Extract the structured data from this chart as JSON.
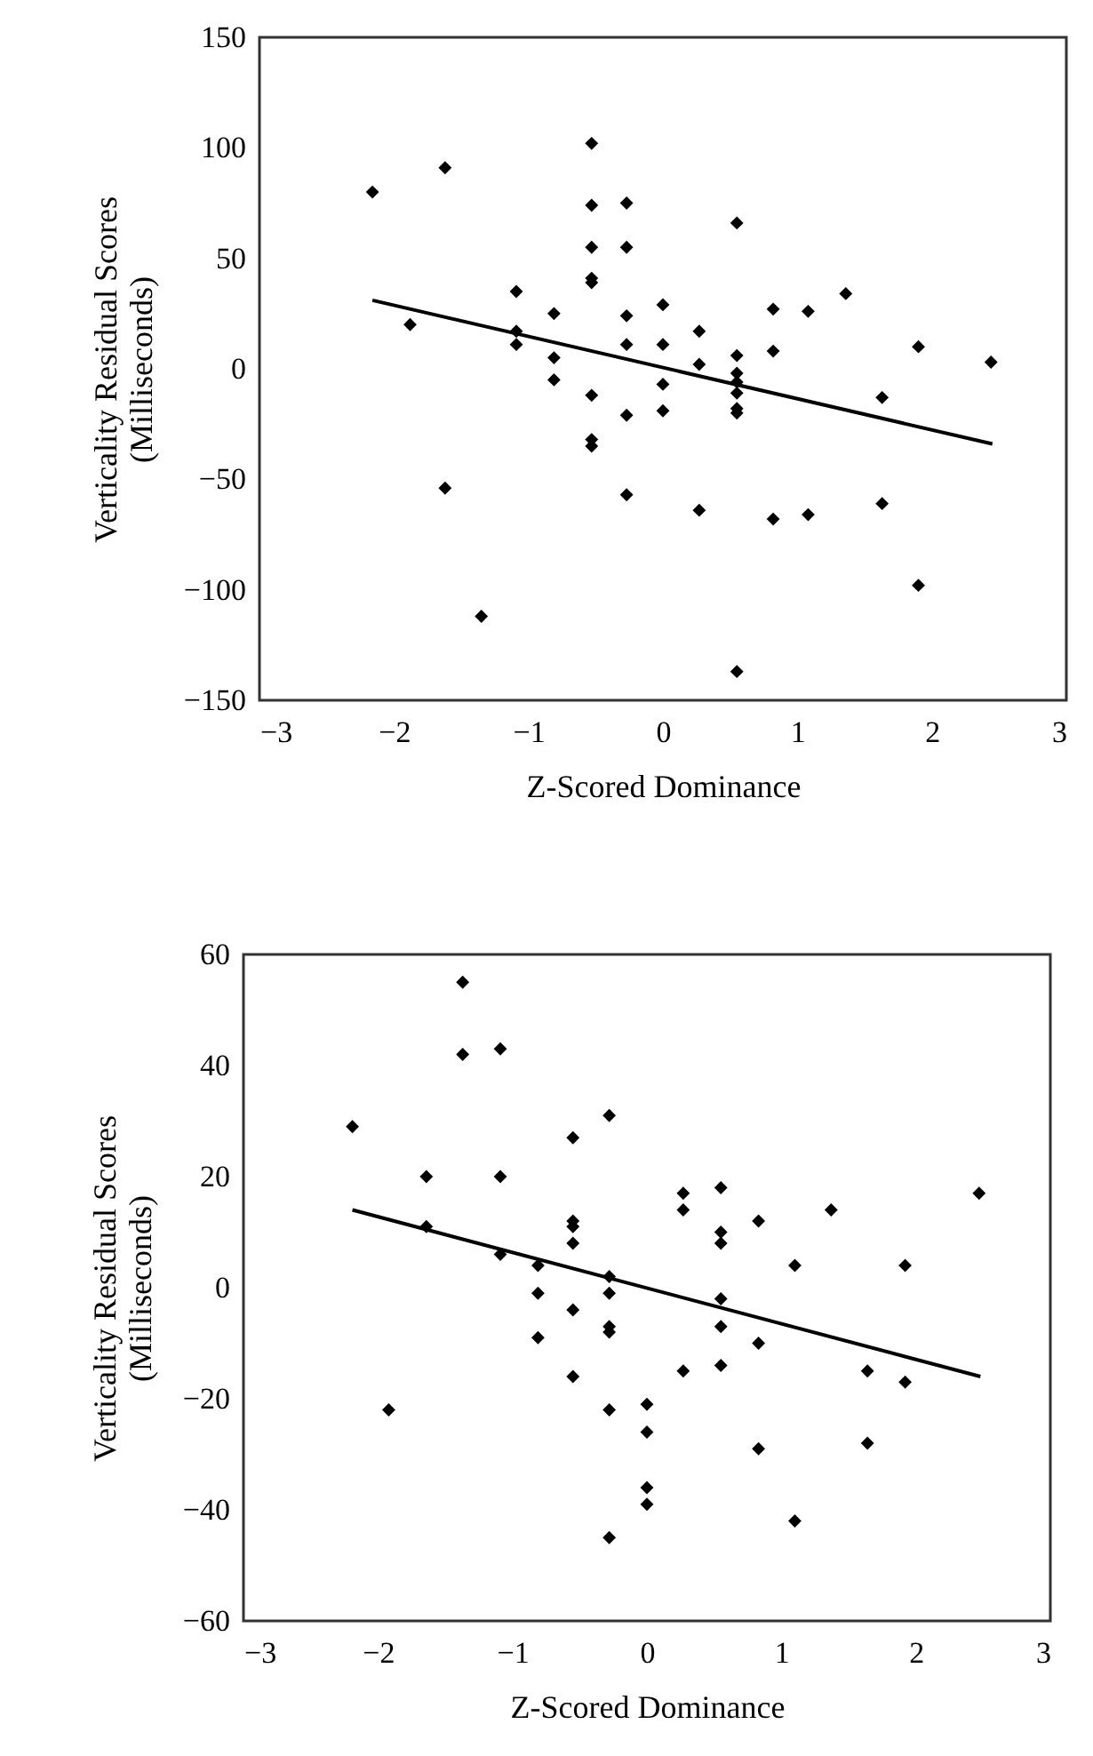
{
  "chart_data": [
    {
      "type": "scatter",
      "xlabel": "Z-Scored Dominance",
      "ylabel": "Verticality Residual Scores\n(Milliseconds)",
      "xlim": [
        -3,
        3
      ],
      "xticks": [
        -3,
        -2,
        -1,
        0,
        1,
        2,
        3
      ],
      "ylim": [
        -150,
        150
      ],
      "yticks": [
        -150,
        -100,
        -50,
        0,
        50,
        100,
        150
      ],
      "grid": false,
      "series": [
        {
          "type": "scatter",
          "marker": "diamond",
          "color": "#000000",
          "x": [
            -2.16,
            -1.62,
            -1.88,
            -1.62,
            -1.35,
            -1.09,
            -1.09,
            -1.09,
            -0.81,
            -0.81,
            -0.81,
            -0.53,
            -0.53,
            -0.53,
            -0.53,
            -0.53,
            -0.53,
            -0.53,
            -0.53,
            -0.27,
            -0.27,
            -0.27,
            -0.27,
            -0.27,
            -0.27,
            0.0,
            0.0,
            0.0,
            0.0,
            0.27,
            0.27,
            0.27,
            0.55,
            0.55,
            0.55,
            0.55,
            0.55,
            0.55,
            0.55,
            0.55,
            0.82,
            0.82,
            0.82,
            1.08,
            1.08,
            1.36,
            1.63,
            1.63,
            1.9,
            1.9,
            2.44
          ],
          "values": [
            80,
            91,
            20,
            -54,
            -112,
            35,
            17,
            11,
            25,
            5,
            -5,
            102,
            74,
            55,
            41,
            39,
            -12,
            -32,
            -35,
            75,
            55,
            24,
            11,
            -21,
            -57,
            29,
            11,
            -7,
            -19,
            17,
            2,
            -64,
            66,
            6,
            -2,
            -6,
            -11,
            -18,
            -20,
            -137,
            27,
            8,
            -68,
            26,
            -66,
            34,
            -13,
            -61,
            10,
            -98,
            3
          ]
        },
        {
          "type": "line",
          "color": "#000000",
          "x": [
            -2.16,
            2.45
          ],
          "values": [
            31,
            -34
          ]
        }
      ]
    },
    {
      "type": "scatter",
      "xlabel": "Z-Scored Dominance",
      "ylabel": "Verticality Residual Scores\n(Milliseconds)",
      "xlim": [
        -3,
        3
      ],
      "xticks": [
        -3,
        -2,
        -1,
        0,
        1,
        2,
        3
      ],
      "ylim": [
        -60,
        60
      ],
      "yticks": [
        -60,
        -40,
        -20,
        0,
        20,
        40,
        60
      ],
      "grid": false,
      "series": [
        {
          "type": "scatter",
          "marker": "diamond",
          "color": "#000000",
          "x": [
            -2.19,
            -1.92,
            -1.64,
            -1.64,
            -1.37,
            -1.37,
            -1.09,
            -1.09,
            -1.09,
            -0.81,
            -0.81,
            -0.81,
            -0.55,
            -0.55,
            -0.55,
            -0.55,
            -0.55,
            -0.55,
            -0.28,
            -0.28,
            -0.28,
            -0.28,
            -0.28,
            -0.28,
            -0.28,
            0.0,
            0.0,
            0.0,
            0.0,
            0.27,
            0.27,
            0.27,
            0.55,
            0.55,
            0.55,
            0.55,
            0.55,
            0.55,
            0.83,
            0.83,
            0.83,
            1.1,
            1.1,
            1.37,
            1.64,
            1.64,
            1.92,
            1.92,
            2.47
          ],
          "values": [
            29,
            -22,
            20,
            11,
            55,
            42,
            43,
            20,
            6,
            4,
            -1,
            -9,
            27,
            12,
            11,
            8,
            -4,
            -16,
            31,
            2,
            -1,
            -7,
            -8,
            -22,
            -45,
            -21,
            -26,
            -36,
            -39,
            17,
            14,
            -15,
            18,
            10,
            8,
            -2,
            -7,
            -14,
            12,
            -10,
            -29,
            4,
            -42,
            14,
            -15,
            -28,
            4,
            -17,
            17
          ]
        },
        {
          "type": "line",
          "color": "#000000",
          "x": [
            -2.19,
            2.48
          ],
          "values": [
            14,
            -16
          ]
        }
      ]
    }
  ]
}
